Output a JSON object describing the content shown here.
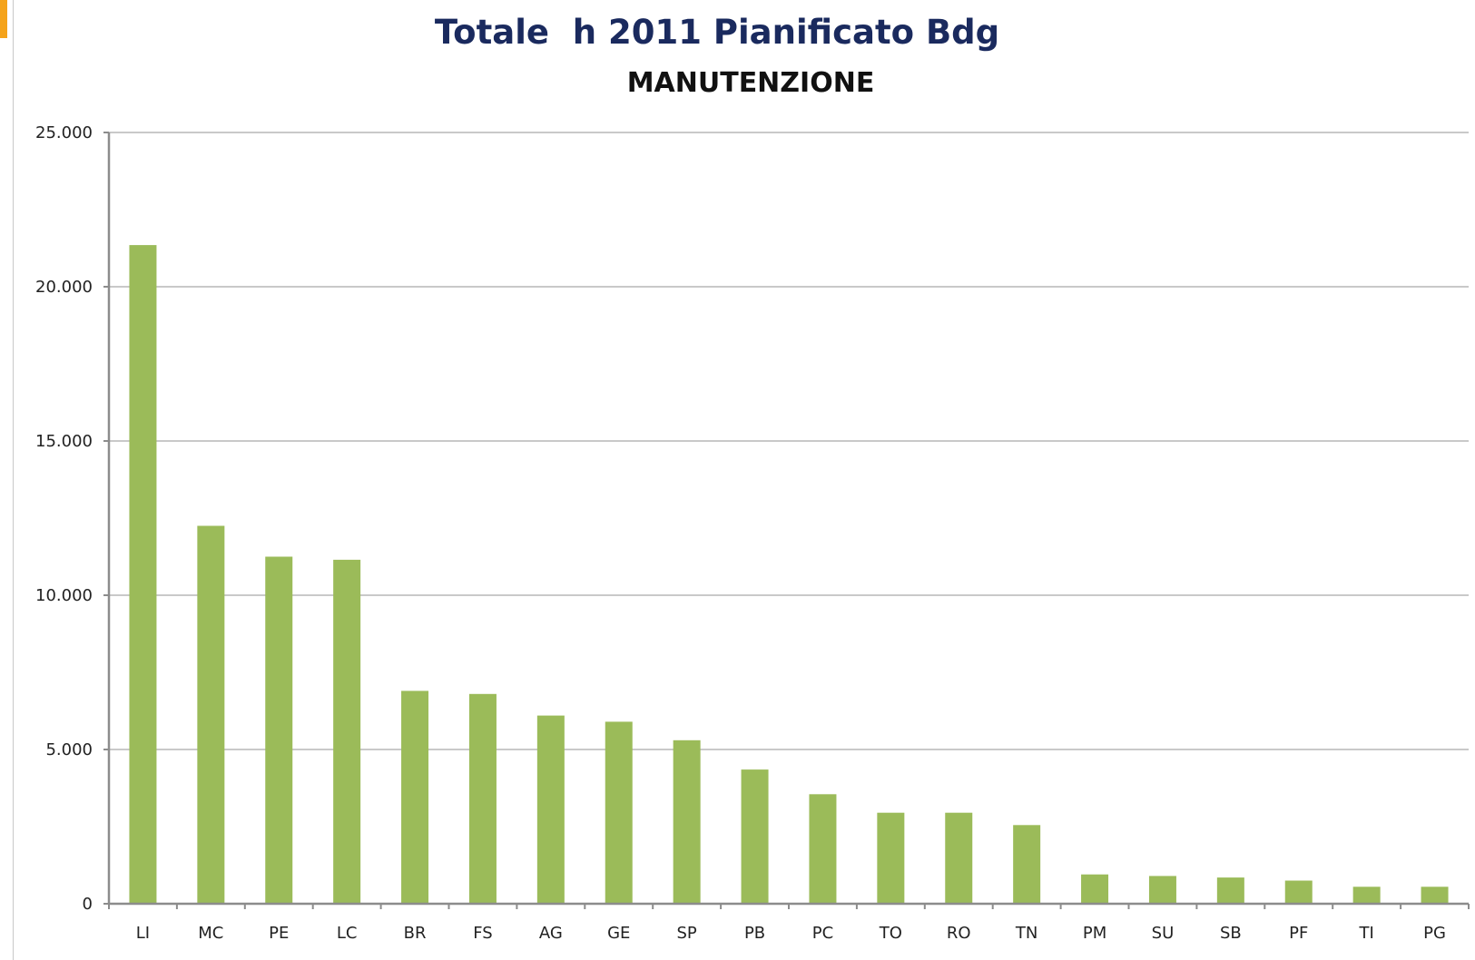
{
  "header": {
    "title": "Totale  h 2011 Pianificato Bdg"
  },
  "colors": {
    "bar": "#9bbb59",
    "grid": "#c9c9c9",
    "axis": "#8c8c8c",
    "title": "#1a2a5e",
    "accent": "#f5a31a"
  },
  "chart_data": {
    "type": "bar",
    "title": "MANUTENZIONE",
    "xlabel": "",
    "ylabel": "",
    "ylim": [
      0,
      25000
    ],
    "yticks": [
      0,
      5000,
      10000,
      15000,
      20000,
      25000
    ],
    "ytick_labels": [
      "0",
      "5.000",
      "10.000",
      "15.000",
      "20.000",
      "25.000"
    ],
    "grid": true,
    "legend": "none",
    "categories": [
      "LI",
      "MC",
      "PE",
      "LC",
      "BR",
      "FS",
      "AG",
      "GE",
      "SP",
      "PB",
      "PC",
      "TO",
      "RO",
      "TN",
      "PM",
      "SU",
      "SB",
      "PF",
      "TI",
      "PG"
    ],
    "values": [
      21350,
      12250,
      11250,
      11150,
      6900,
      6800,
      6100,
      5900,
      5300,
      4350,
      3550,
      2950,
      2950,
      2550,
      950,
      900,
      850,
      750,
      550,
      550
    ]
  }
}
